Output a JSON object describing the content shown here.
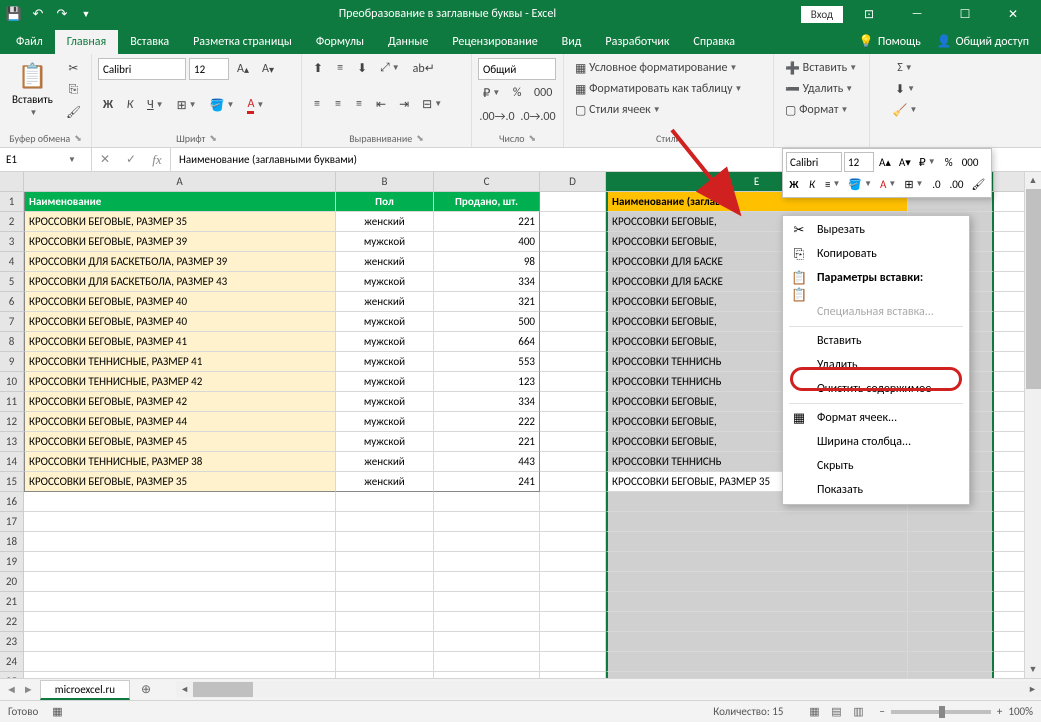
{
  "titlebar": {
    "title": "Преобразование в заглавные буквы  -  Excel",
    "login": "Вход"
  },
  "tabs": {
    "file": "Файл",
    "home": "Главная",
    "insert": "Вставка",
    "layout": "Разметка страницы",
    "formulas": "Формулы",
    "data": "Данные",
    "review": "Рецензирование",
    "view": "Вид",
    "developer": "Разработчик",
    "help": "Справка",
    "tell": "Помощь",
    "share": "Общий доступ"
  },
  "ribbon": {
    "clipboard": {
      "paste": "Вставить",
      "label": "Буфер обмена"
    },
    "font": {
      "name": "Calibri",
      "size": "12",
      "label": "Шрифт"
    },
    "alignment": {
      "label": "Выравнивание"
    },
    "number": {
      "format": "Общий",
      "label": "Число"
    },
    "styles": {
      "cond": "Условное форматирование",
      "table": "Форматировать как таблицу",
      "cell": "Стили ячеек",
      "label": "Стили"
    },
    "cells": {
      "insert": "Вставить",
      "delete": "Удалить",
      "format": "Формат"
    },
    "editing": {}
  },
  "mini": {
    "font": "Calibri",
    "size": "12"
  },
  "namebox": "E1",
  "formula": "Наименование (заглавными буквами)",
  "columns": [
    "A",
    "B",
    "C",
    "D",
    "E",
    "F"
  ],
  "headers": {
    "a": "Наименование",
    "b": "Пол",
    "c": "Продано, шт.",
    "e": "Наименование (заглав"
  },
  "rows": [
    {
      "a": "КРОССОВКИ БЕГОВЫЕ, РАЗМЕР 35",
      "b": "женский",
      "c": "221",
      "e": "КРОССОВКИ БЕГОВЫЕ,"
    },
    {
      "a": "КРОССОВКИ БЕГОВЫЕ, РАЗМЕР 39",
      "b": "мужской",
      "c": "400",
      "e": "КРОССОВКИ БЕГОВЫЕ,"
    },
    {
      "a": "КРОССОВКИ ДЛЯ БАСКЕТБОЛА, РАЗМЕР 39",
      "b": "женский",
      "c": "98",
      "e": "КРОССОВКИ ДЛЯ БАСКЕ"
    },
    {
      "a": "КРОССОВКИ ДЛЯ БАСКЕТБОЛА, РАЗМЕР 43",
      "b": "мужской",
      "c": "334",
      "e": "КРОССОВКИ ДЛЯ БАСКЕ"
    },
    {
      "a": "КРОССОВКИ БЕГОВЫЕ, РАЗМЕР 40",
      "b": "женский",
      "c": "321",
      "e": "КРОССОВКИ БЕГОВЫЕ,"
    },
    {
      "a": "КРОССОВКИ БЕГОВЫЕ, РАЗМЕР 40",
      "b": "мужской",
      "c": "500",
      "e": "КРОССОВКИ БЕГОВЫЕ,"
    },
    {
      "a": "КРОССОВКИ БЕГОВЫЕ, РАЗМЕР 41",
      "b": "мужской",
      "c": "664",
      "e": "КРОССОВКИ БЕГОВЫЕ,"
    },
    {
      "a": "КРОССОВКИ ТЕННИСНЫЕ, РАЗМЕР 41",
      "b": "мужской",
      "c": "553",
      "e": "КРОССОВКИ ТЕННИСНЬ"
    },
    {
      "a": "КРОССОВКИ ТЕННИСНЫЕ, РАЗМЕР 42",
      "b": "мужской",
      "c": "123",
      "e": "КРОССОВКИ ТЕННИСНЬ"
    },
    {
      "a": "КРОССОВКИ БЕГОВЫЕ, РАЗМЕР 42",
      "b": "мужской",
      "c": "334",
      "e": "КРОССОВКИ БЕГОВЫЕ,"
    },
    {
      "a": "КРОССОВКИ БЕГОВЫЕ, РАЗМЕР 44",
      "b": "мужской",
      "c": "222",
      "e": "КРОССОВКИ БЕГОВЫЕ,"
    },
    {
      "a": "КРОССОВКИ БЕГОВЫЕ, РАЗМЕР 45",
      "b": "мужской",
      "c": "221",
      "e": "КРОССОВКИ БЕГОВЫЕ,"
    },
    {
      "a": "КРОССОВКИ ТЕННИСНЫЕ, РАЗМЕР 38",
      "b": "женский",
      "c": "443",
      "e": "КРОССОВКИ ТЕННИСНЬ"
    },
    {
      "a": "КРОССОВКИ БЕГОВЫЕ, РАЗМЕР 35",
      "b": "женский",
      "c": "241",
      "e": "КРОССОВКИ БЕГОВЫЕ, РАЗМЕР 35"
    }
  ],
  "context": {
    "cut": "Вырезать",
    "copy": "Копировать",
    "paste_opts": "Параметры вставки:",
    "paste_special": "Специальная вставка...",
    "insert": "Вставить",
    "delete": "Удалить",
    "clear": "Очистить содержимое",
    "format": "Формат ячеек...",
    "col_width": "Ширина столбца...",
    "hide": "Скрыть",
    "show": "Показать"
  },
  "sheet": "microexcel.ru",
  "status": {
    "ready": "Готово",
    "count_label": "Количество:",
    "count": "15",
    "zoom": "100%"
  },
  "colors": {
    "brand": "#0f7a3f",
    "header_green": "#00b050",
    "header_yellow": "#ffc000",
    "row_yellow": "#fff2cc",
    "highlight_red": "#d02020",
    "arrow_red": "#d02020"
  }
}
